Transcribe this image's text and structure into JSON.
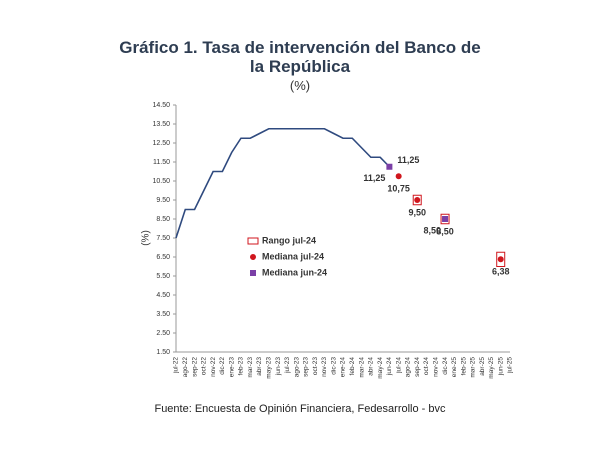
{
  "chart_data": {
    "type": "line",
    "title": "Gráfico 1. Tasa de intervención del Banco de la República",
    "subtitle": "(%)",
    "y_label": "(%)",
    "source": "Fuente: Encuesta de Opinión Financiera, Fedesarrollo - bvc",
    "categories": [
      "jul-22",
      "ago-22",
      "sep-22",
      "oct-22",
      "nov-22",
      "dic-22",
      "ene-23",
      "feb-23",
      "mar-23",
      "abr-23",
      "may-23",
      "jun-23",
      "jul-23",
      "ago-23",
      "sep-23",
      "oct-23",
      "nov-23",
      "dic-23",
      "ene-24",
      "feb-24",
      "mar-24",
      "abr-24",
      "may-24",
      "jun-24",
      "jul-24",
      "ago-24",
      "sep-24",
      "oct-24",
      "nov-24",
      "dic-24",
      "ene-25",
      "feb-25",
      "mar-25",
      "abr-25",
      "may-25",
      "jun-25",
      "jul-25"
    ],
    "ylim": [
      1.5,
      14.5
    ],
    "yticks": [
      {
        "value": 1.5,
        "label": "1.50"
      },
      {
        "value": 2.5,
        "label": "2.50"
      },
      {
        "value": 3.5,
        "label": "3.50"
      },
      {
        "value": 4.5,
        "label": "4.50"
      },
      {
        "value": 5.5,
        "label": "5.50"
      },
      {
        "value": 6.5,
        "label": "6.50"
      },
      {
        "value": 7.5,
        "label": "7.50"
      },
      {
        "value": 8.5,
        "label": "8.50"
      },
      {
        "value": 9.5,
        "label": "9.50"
      },
      {
        "value": 10.5,
        "label": "10.50"
      },
      {
        "value": 11.5,
        "label": "11.50"
      },
      {
        "value": 12.5,
        "label": "12.50"
      },
      {
        "value": 13.5,
        "label": "13.50"
      },
      {
        "value": 14.5,
        "label": "14.50"
      }
    ],
    "series": [
      {
        "mark": "line",
        "color": "#2f4a7f",
        "values": [
          7.5,
          9,
          9,
          10,
          11,
          11,
          12,
          12.75,
          12.75,
          13,
          13.25,
          13.25,
          13.25,
          13.25,
          13.25,
          13.25,
          13.25,
          13,
          12.75,
          12.75,
          12.25,
          11.75,
          11.75,
          11.25,
          null,
          null,
          null,
          null,
          null,
          null,
          null,
          null,
          null,
          null,
          null,
          null,
          null
        ],
        "value_labels": [
          null,
          null,
          null,
          null,
          null,
          null,
          null,
          null,
          null,
          null,
          null,
          null,
          null,
          null,
          null,
          null,
          null,
          null,
          null,
          null,
          null,
          null,
          null,
          "11,25",
          null,
          null,
          null,
          null,
          null,
          null,
          null,
          null,
          null,
          null,
          null,
          null,
          null
        ]
      },
      {
        "name": "Mediana jul-24",
        "mark": "dot",
        "color": "#d0161d",
        "values": [
          null,
          null,
          null,
          null,
          null,
          null,
          null,
          null,
          null,
          null,
          null,
          null,
          null,
          null,
          null,
          null,
          null,
          null,
          null,
          null,
          null,
          null,
          null,
          null,
          10.75,
          null,
          9.5,
          null,
          null,
          8.5,
          null,
          null,
          null,
          null,
          null,
          6.38,
          null
        ],
        "value_labels": [
          null,
          null,
          null,
          null,
          null,
          null,
          null,
          null,
          null,
          null,
          null,
          null,
          null,
          null,
          null,
          null,
          null,
          null,
          null,
          null,
          null,
          null,
          null,
          null,
          "10,75",
          null,
          "9,50",
          null,
          null,
          "8,50",
          null,
          null,
          null,
          null,
          null,
          "6,38",
          null
        ]
      },
      {
        "name": "Mediana jun-24",
        "mark": "square",
        "color": "#7a3fa6",
        "values": [
          null,
          null,
          null,
          null,
          null,
          null,
          null,
          null,
          null,
          null,
          null,
          null,
          null,
          null,
          null,
          null,
          null,
          null,
          null,
          null,
          null,
          null,
          null,
          11.25,
          null,
          null,
          null,
          null,
          null,
          8.5,
          null,
          null,
          null,
          null,
          null,
          null,
          null
        ],
        "value_labels": [
          null,
          null,
          null,
          null,
          null,
          null,
          null,
          null,
          null,
          null,
          null,
          null,
          null,
          null,
          null,
          null,
          null,
          null,
          null,
          null,
          null,
          null,
          null,
          "11,25",
          null,
          null,
          null,
          null,
          null,
          "8,50",
          null,
          null,
          null,
          null,
          null,
          null,
          null
        ]
      }
    ],
    "range": {
      "name": "Rango jul-24",
      "color": "#d0161d",
      "low": [
        null,
        null,
        null,
        null,
        null,
        null,
        null,
        null,
        null,
        null,
        null,
        null,
        null,
        null,
        null,
        null,
        null,
        null,
        null,
        null,
        null,
        null,
        null,
        null,
        null,
        null,
        9.25,
        null,
        null,
        8.25,
        null,
        null,
        null,
        null,
        null,
        6,
        null
      ],
      "high": [
        null,
        null,
        null,
        null,
        null,
        null,
        null,
        null,
        null,
        null,
        null,
        null,
        null,
        null,
        null,
        null,
        null,
        null,
        null,
        null,
        null,
        null,
        null,
        null,
        null,
        null,
        9.75,
        null,
        null,
        8.75,
        null,
        null,
        null,
        null,
        null,
        6.75,
        null
      ]
    },
    "grid": false
  }
}
